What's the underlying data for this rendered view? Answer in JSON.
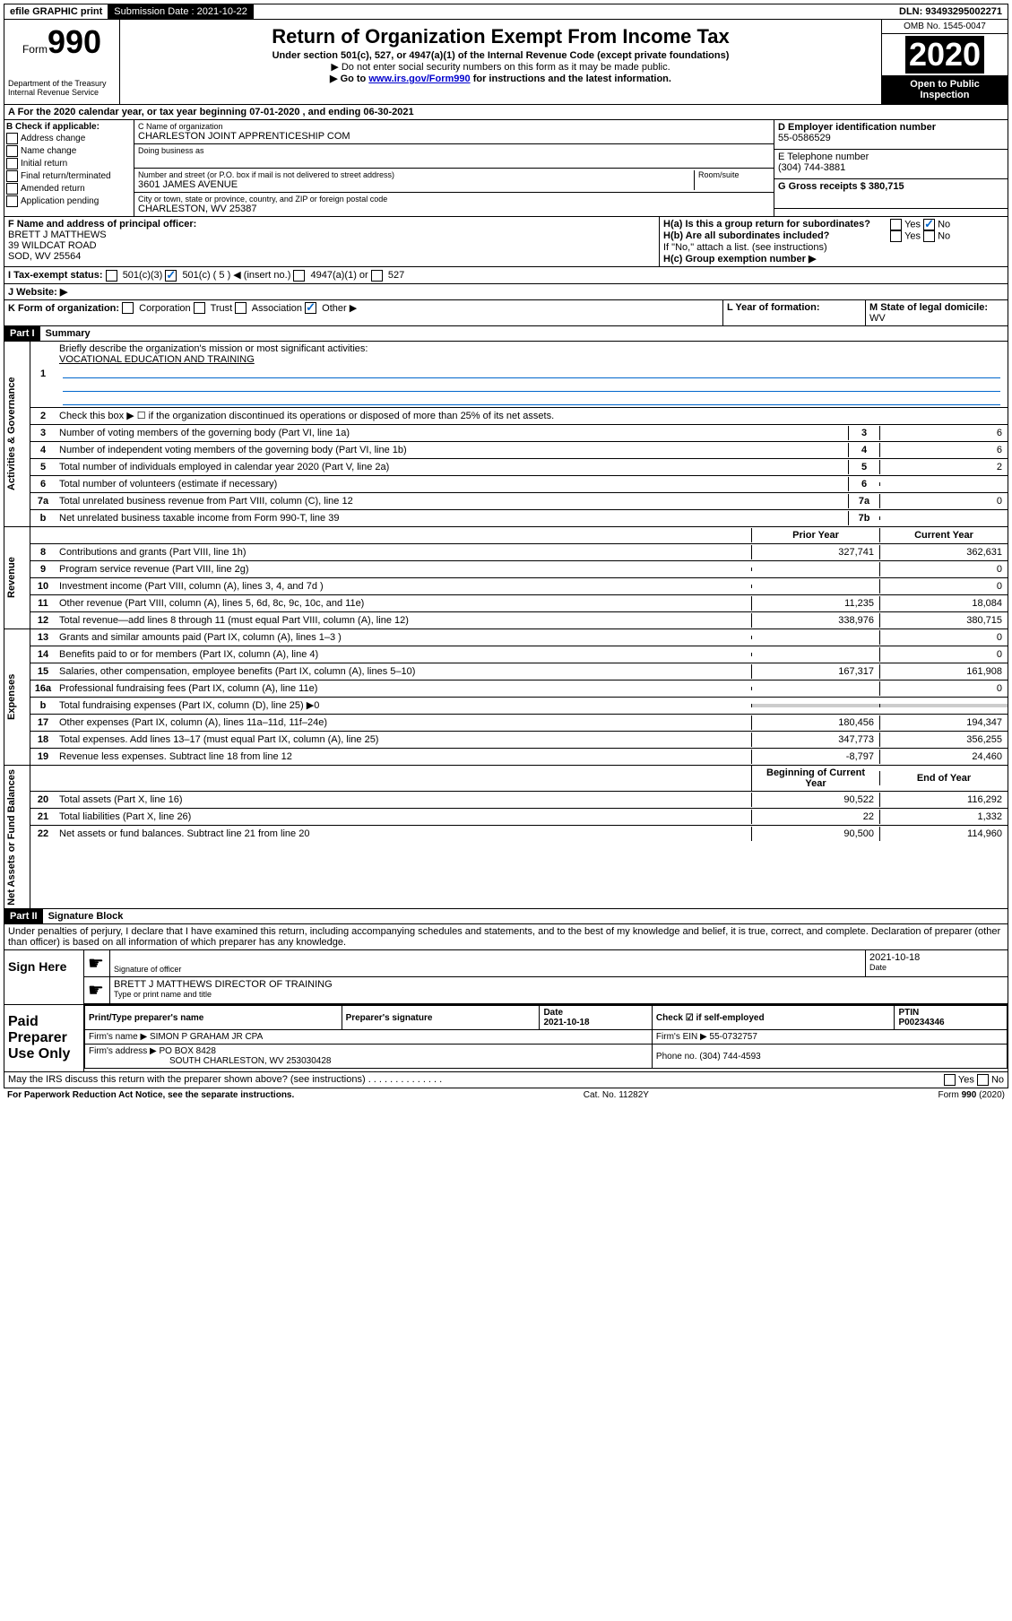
{
  "topbar": {
    "efile": "efile GRAPHIC print",
    "submission_label": "Submission Date : ",
    "submission_date": "2021-10-22",
    "dln_label": "DLN: ",
    "dln": "93493295002271"
  },
  "header": {
    "form_prefix": "Form",
    "form_number": "990",
    "dept": "Department of the Treasury\nInternal Revenue Service",
    "title": "Return of Organization Exempt From Income Tax",
    "subtitle": "Under section 501(c), 527, or 4947(a)(1) of the Internal Revenue Code (except private foundations)",
    "note1": "▶ Do not enter social security numbers on this form as it may be made public.",
    "note2_pre": "▶ Go to ",
    "note2_link": "www.irs.gov/Form990",
    "note2_post": " for instructions and the latest information.",
    "omb": "OMB No. 1545-0047",
    "year": "2020",
    "open_public": "Open to Public Inspection"
  },
  "section_a": {
    "text": "A For the 2020 calendar year, or tax year beginning 07-01-2020   , and ending 06-30-2021"
  },
  "col_b": {
    "label": "B Check if applicable:",
    "items": [
      "Address change",
      "Name change",
      "Initial return",
      "Final return/terminated",
      "Amended return",
      "Application pending"
    ]
  },
  "col_c": {
    "name_label": "C Name of organization",
    "name": "CHARLESTON JOINT APPRENTICESHIP COM",
    "dba_label": "Doing business as",
    "addr_label": "Number and street (or P.O. box if mail is not delivered to street address)",
    "room_label": "Room/suite",
    "addr": "3601 JAMES AVENUE",
    "city_label": "City or town, state or province, country, and ZIP or foreign postal code",
    "city": "CHARLESTON, WV  25387"
  },
  "col_d": {
    "ein_label": "D Employer identification number",
    "ein": "55-0586529",
    "phone_label": "E Telephone number",
    "phone": "(304) 744-3881",
    "gross_label": "G Gross receipts $ ",
    "gross": "380,715"
  },
  "row_f": {
    "f_label": "F Name and address of principal officer:",
    "f_name": "BRETT J MATTHEWS",
    "f_addr1": "39 WILDCAT ROAD",
    "f_addr2": "SOD, WV  25564",
    "ha_label": "H(a)  Is this a group return for subordinates?",
    "hb_label": "H(b)  Are all subordinates included?",
    "hb_note": "If \"No,\" attach a list. (see instructions)",
    "hc_label": "H(c)  Group exemption number ▶",
    "yes": "Yes",
    "no": "No"
  },
  "row_i": {
    "label": "I Tax-exempt status:",
    "opts": [
      "501(c)(3)",
      "501(c) ( 5 ) ◀ (insert no.)",
      "4947(a)(1) or",
      "527"
    ]
  },
  "row_j": {
    "label": "J   Website: ▶"
  },
  "row_k": {
    "k_label": "K Form of organization:",
    "k_opts": [
      "Corporation",
      "Trust",
      "Association",
      "Other ▶"
    ],
    "l_label": "L Year of formation:",
    "m_label": "M State of legal domicile:",
    "m_val": "WV"
  },
  "part1": {
    "header": "Part I",
    "title": "Summary",
    "line1_label": "Briefly describe the organization's mission or most significant activities:",
    "line1_val": "VOCATIONAL EDUCATION AND TRAINING",
    "line2": "Check this box ▶ ☐  if the organization discontinued its operations or disposed of more than 25% of its net assets.",
    "lines_simple": [
      {
        "num": "3",
        "text": "Number of voting members of the governing body (Part VI, line 1a)",
        "box": "3",
        "val": "6"
      },
      {
        "num": "4",
        "text": "Number of independent voting members of the governing body (Part VI, line 1b)",
        "box": "4",
        "val": "6"
      },
      {
        "num": "5",
        "text": "Total number of individuals employed in calendar year 2020 (Part V, line 2a)",
        "box": "5",
        "val": "2"
      },
      {
        "num": "6",
        "text": "Total number of volunteers (estimate if necessary)",
        "box": "6",
        "val": ""
      },
      {
        "num": "7a",
        "text": "Total unrelated business revenue from Part VIII, column (C), line 12",
        "box": "7a",
        "val": "0"
      },
      {
        "num": "b",
        "text": "Net unrelated business taxable income from Form 990-T, line 39",
        "box": "7b",
        "val": ""
      }
    ],
    "col_headers": {
      "prior": "Prior Year",
      "current": "Current Year"
    },
    "revenue": [
      {
        "num": "8",
        "text": "Contributions and grants (Part VIII, line 1h)",
        "prior": "327,741",
        "current": "362,631"
      },
      {
        "num": "9",
        "text": "Program service revenue (Part VIII, line 2g)",
        "prior": "",
        "current": "0"
      },
      {
        "num": "10",
        "text": "Investment income (Part VIII, column (A), lines 3, 4, and 7d )",
        "prior": "",
        "current": "0"
      },
      {
        "num": "11",
        "text": "Other revenue (Part VIII, column (A), lines 5, 6d, 8c, 9c, 10c, and 11e)",
        "prior": "11,235",
        "current": "18,084"
      },
      {
        "num": "12",
        "text": "Total revenue—add lines 8 through 11 (must equal Part VIII, column (A), line 12)",
        "prior": "338,976",
        "current": "380,715"
      }
    ],
    "expenses": [
      {
        "num": "13",
        "text": "Grants and similar amounts paid (Part IX, column (A), lines 1–3 )",
        "prior": "",
        "current": "0"
      },
      {
        "num": "14",
        "text": "Benefits paid to or for members (Part IX, column (A), line 4)",
        "prior": "",
        "current": "0"
      },
      {
        "num": "15",
        "text": "Salaries, other compensation, employee benefits (Part IX, column (A), lines 5–10)",
        "prior": "167,317",
        "current": "161,908"
      },
      {
        "num": "16a",
        "text": "Professional fundraising fees (Part IX, column (A), line 11e)",
        "prior": "",
        "current": "0"
      },
      {
        "num": "b",
        "text": "Total fundraising expenses (Part IX, column (D), line 25) ▶0",
        "prior": "shaded",
        "current": "shaded"
      },
      {
        "num": "17",
        "text": "Other expenses (Part IX, column (A), lines 11a–11d, 11f–24e)",
        "prior": "180,456",
        "current": "194,347"
      },
      {
        "num": "18",
        "text": "Total expenses. Add lines 13–17 (must equal Part IX, column (A), line 25)",
        "prior": "347,773",
        "current": "356,255"
      },
      {
        "num": "19",
        "text": "Revenue less expenses. Subtract line 18 from line 12",
        "prior": "-8,797",
        "current": "24,460"
      }
    ],
    "net_headers": {
      "begin": "Beginning of Current Year",
      "end": "End of Year"
    },
    "net": [
      {
        "num": "20",
        "text": "Total assets (Part X, line 16)",
        "prior": "90,522",
        "current": "116,292"
      },
      {
        "num": "21",
        "text": "Total liabilities (Part X, line 26)",
        "prior": "22",
        "current": "1,332"
      },
      {
        "num": "22",
        "text": "Net assets or fund balances. Subtract line 21 from line 20",
        "prior": "90,500",
        "current": "114,960"
      }
    ],
    "sidetabs": {
      "gov": "Activities & Governance",
      "rev": "Revenue",
      "exp": "Expenses",
      "net": "Net Assets or Fund Balances"
    }
  },
  "part2": {
    "header": "Part II",
    "title": "Signature Block",
    "penalty": "Under penalties of perjury, I declare that I have examined this return, including accompanying schedules and statements, and to the best of my knowledge and belief, it is true, correct, and complete. Declaration of preparer (other than officer) is based on all information of which preparer has any knowledge."
  },
  "sign": {
    "label": "Sign Here",
    "sig_officer": "Signature of officer",
    "date": "2021-10-18",
    "date_label": "Date",
    "name": "BRETT J MATTHEWS  DIRECTOR OF TRAINING",
    "name_label": "Type or print name and title"
  },
  "preparer": {
    "label": "Paid Preparer Use Only",
    "h_print": "Print/Type preparer's name",
    "h_sig": "Preparer's signature",
    "h_date": "Date",
    "h_date_val": "2021-10-18",
    "h_check": "Check ☑ if self-employed",
    "h_ptin": "PTIN",
    "ptin": "P00234346",
    "firm_label": "Firm's name    ▶",
    "firm": "SIMON P GRAHAM JR CPA",
    "firm_ein_label": "Firm's EIN ▶",
    "firm_ein": "55-0732757",
    "firm_addr_label": "Firm's address ▶",
    "firm_addr1": "PO BOX 8428",
    "firm_addr2": "SOUTH CHARLESTON, WV  253030428",
    "firm_phone_label": "Phone no.",
    "firm_phone": "(304) 744-4593",
    "discuss": "May the IRS discuss this return with the preparer shown above? (see instructions)"
  },
  "footer": {
    "left": "For Paperwork Reduction Act Notice, see the separate instructions.",
    "center": "Cat. No. 11282Y",
    "right": "Form 990 (2020)"
  }
}
